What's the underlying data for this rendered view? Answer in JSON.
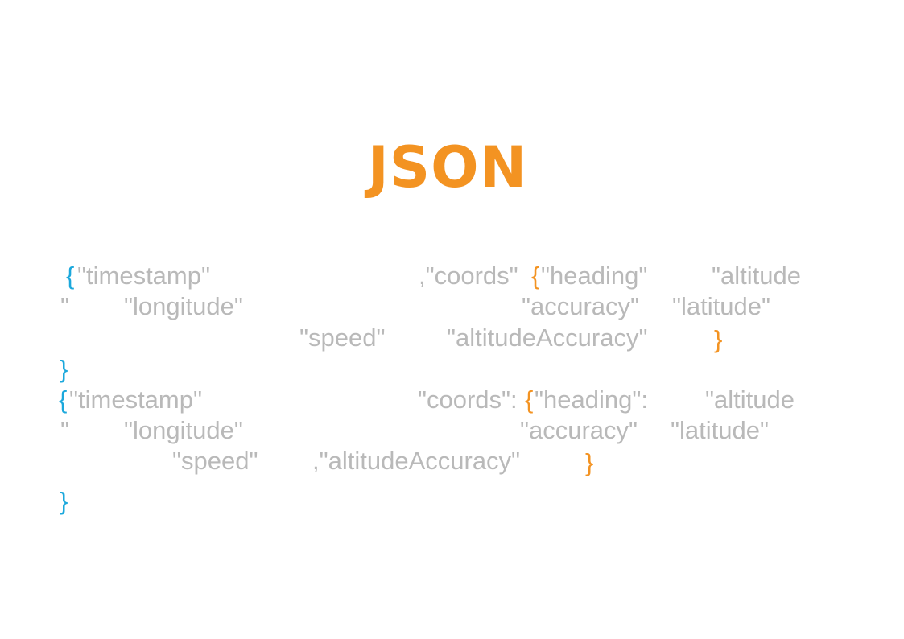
{
  "colors": {
    "title": "#f39322",
    "text": "#b9b9b9",
    "brace_outer": "#1ba8dc",
    "brace_inner": "#f39322"
  },
  "title": "JSON",
  "block1": {
    "open_outer": "{",
    "timestamp": "\"timestamp\"",
    "coords": ",\"coords\"",
    "open_inner": "{",
    "heading": "\"heading\"",
    "altitude_a": "\"altitude",
    "altitude_b": "\"",
    "longitude": "\"longitude\"",
    "accuracy": "\"accuracy\"",
    "latitude": "\"latitude\"",
    "speed": "\"speed\"",
    "altitude_accuracy": "\"altitudeAccuracy\"",
    "close_inner": "}",
    "close_outer": "}"
  },
  "block2": {
    "open_outer": "{",
    "timestamp": "\"timestamp\"",
    "coords": "\"coords\":",
    "open_inner": "{",
    "heading": "\"heading\":",
    "altitude_a": "\"altitude",
    "altitude_b": "\"",
    "longitude": "\"longitude\"",
    "accuracy": "\"accuracy\"",
    "latitude": "\"latitude\"",
    "speed": "\"speed\"",
    "altitude_accuracy": ",\"altitudeAccuracy\"",
    "close_inner": "}",
    "close_outer": "}"
  }
}
